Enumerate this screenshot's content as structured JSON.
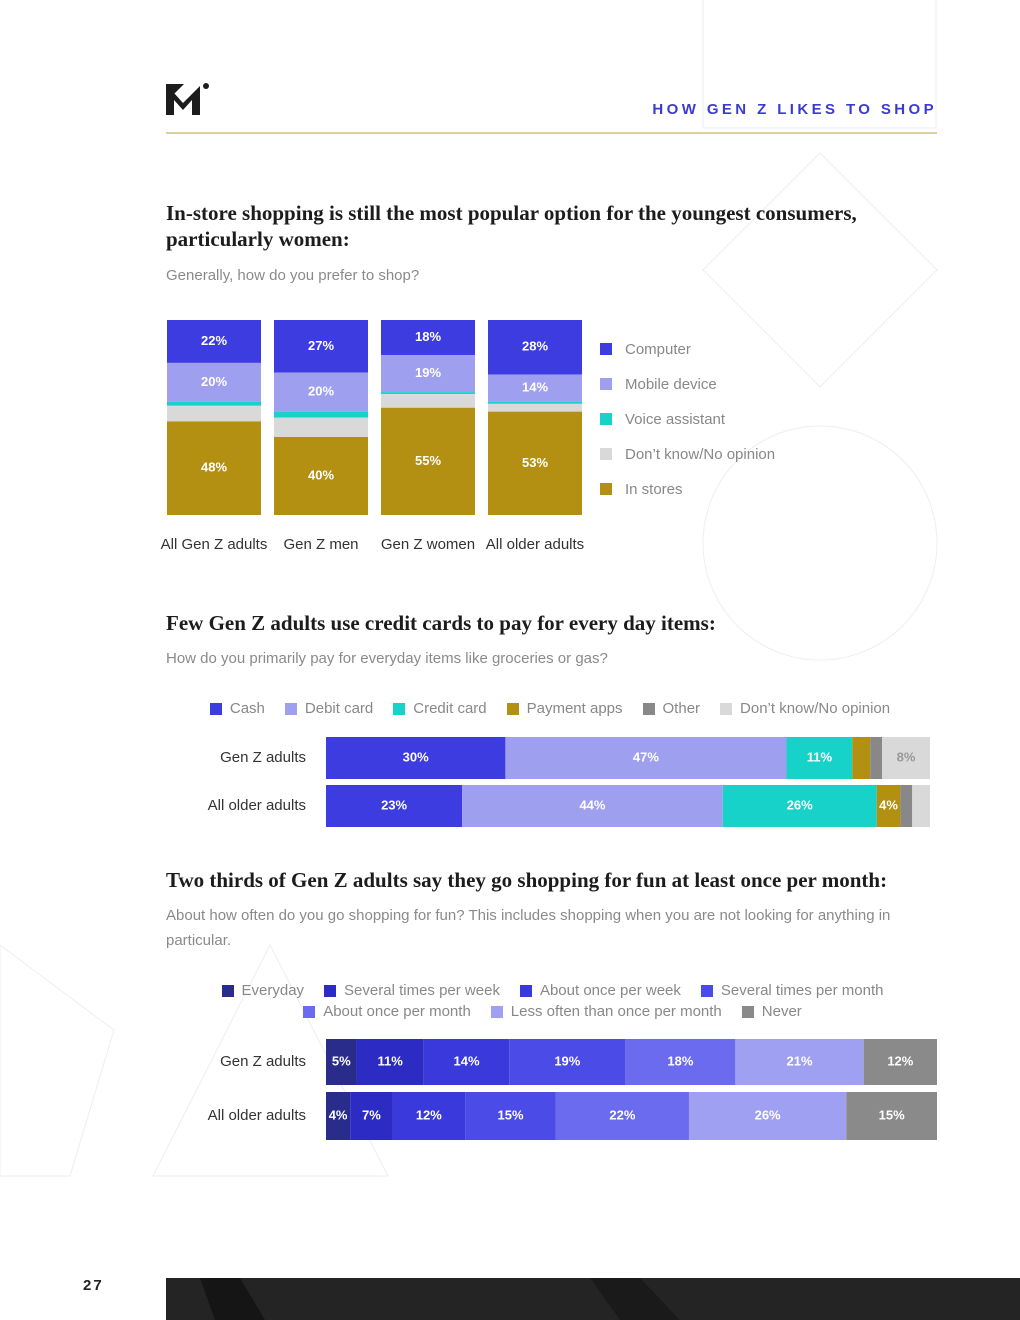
{
  "header": {
    "title": "HOW GEN Z LIKES TO SHOP"
  },
  "page_number": "27",
  "chart_data": [
    {
      "type": "column",
      "stacked": true,
      "title": "In-store shopping is still the most popular option for the youngest consumers, particularly women:",
      "subtitle": "Generally, how do you prefer to shop?",
      "categories": [
        "All Gen Z adults",
        "Gen Z men",
        "Gen Z women",
        "All older adults"
      ],
      "legend": "right",
      "series": [
        {
          "name": "Computer",
          "color": "#3c3ce0",
          "values": [
            22,
            27,
            18,
            28
          ],
          "value_labels": [
            "22%",
            "27%",
            "18%",
            "28%"
          ]
        },
        {
          "name": "Mobile device",
          "color": "#9f9ff0",
          "values": [
            20,
            20,
            19,
            14
          ],
          "value_labels": [
            "20%",
            "20%",
            "19%",
            "14%"
          ]
        },
        {
          "name": "Voice assistant",
          "color": "#16d2c8",
          "values": [
            2,
            3,
            1,
            1
          ]
        },
        {
          "name": "Don’t know/No opinion",
          "color": "#d9d9d9",
          "values": [
            8,
            10,
            7,
            4
          ]
        },
        {
          "name": "In stores",
          "color": "#b38f12",
          "values": [
            48,
            40,
            55,
            53
          ],
          "value_labels": [
            "48%",
            "40%",
            "55%",
            "53%"
          ]
        }
      ]
    },
    {
      "type": "bar",
      "stacked": true,
      "title": "Few Gen Z adults use credit cards to pay for every day items:",
      "subtitle": "How do you primarily pay for everyday items like groceries or gas?",
      "categories": [
        "Gen Z adults",
        "All older adults"
      ],
      "legend": "top",
      "series": [
        {
          "name": "Cash",
          "color": "#3c3ce0",
          "values": [
            30,
            23
          ],
          "value_labels": [
            "30%",
            "23%"
          ]
        },
        {
          "name": "Debit card",
          "color": "#9f9ff0",
          "values": [
            47,
            44
          ],
          "value_labels": [
            "47%",
            "44%"
          ]
        },
        {
          "name": "Credit card",
          "color": "#16d2c8",
          "values": [
            11,
            26
          ],
          "value_labels": [
            "11%",
            "26%"
          ]
        },
        {
          "name": "Payment apps",
          "color": "#b38f12",
          "values": [
            3,
            4
          ],
          "value_labels": [
            null,
            "4%"
          ]
        },
        {
          "name": "Other",
          "color": "#888888",
          "values": [
            2,
            2
          ]
        },
        {
          "name": "Don’t know/No opinion",
          "color": "#d9d9d9",
          "label_color": "#999999",
          "values": [
            8,
            3
          ],
          "value_labels": [
            "8%",
            null
          ]
        }
      ]
    },
    {
      "type": "bar",
      "stacked": true,
      "title": "Two thirds of Gen Z adults say they go shopping for fun at least once per month:",
      "subtitle": "About how often do you go shopping for fun? This includes shopping when you are not looking for anything in particular.",
      "categories": [
        "Gen Z adults",
        "All older adults"
      ],
      "legend": "top",
      "series": [
        {
          "name": "Everyday",
          "color": "#2a2c8c",
          "values": [
            5,
            4
          ],
          "value_labels": [
            "5%",
            "4%"
          ]
        },
        {
          "name": "Several times per week",
          "color": "#2c2cc4",
          "values": [
            11,
            7
          ],
          "value_labels": [
            "11%",
            "7%"
          ]
        },
        {
          "name": "About once per week",
          "color": "#3a3adc",
          "values": [
            14,
            12
          ],
          "value_labels": [
            "14%",
            "12%"
          ]
        },
        {
          "name": "Several times per month",
          "color": "#4b4be8",
          "values": [
            19,
            15
          ],
          "value_labels": [
            "19%",
            "15%"
          ]
        },
        {
          "name": "About once per month",
          "color": "#6b6bf0",
          "values": [
            18,
            22
          ],
          "value_labels": [
            "18%",
            "22%"
          ]
        },
        {
          "name": "Less often than once per month",
          "color": "#a0a0f2",
          "values": [
            21,
            26
          ],
          "value_labels": [
            "21%",
            "26%"
          ]
        },
        {
          "name": "Never",
          "color": "#8a8a8a",
          "values": [
            12,
            15
          ],
          "value_labels": [
            "12%",
            "15%"
          ]
        }
      ]
    }
  ]
}
